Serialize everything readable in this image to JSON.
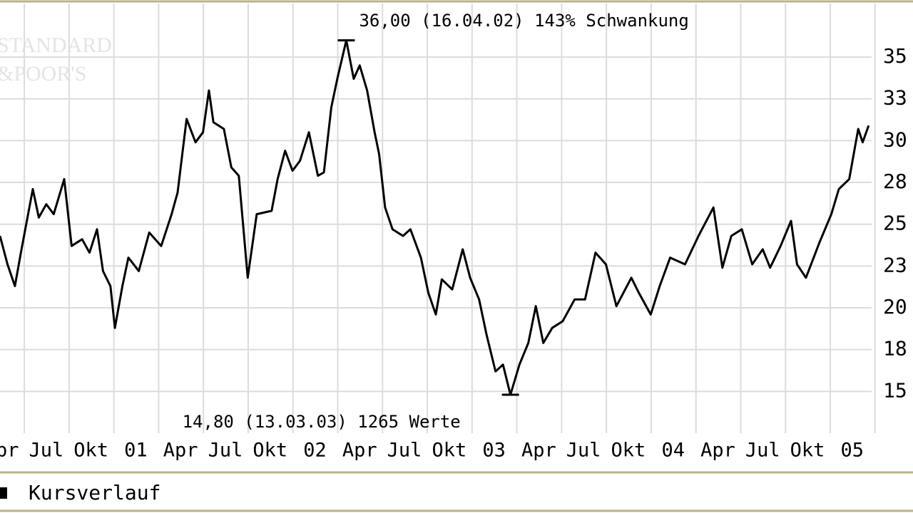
{
  "chart_data": {
    "type": "line",
    "watermark": [
      "STANDARD",
      "&POOR'S"
    ],
    "annotations": [
      "36,00 (16.04.02) 143% Schwankung",
      "14,80 (13.03.03) 1265 Werte"
    ],
    "series": [
      {
        "name": "Kursverlauf",
        "color": "#000000",
        "x": [
          -0.1,
          0.4,
          0.9,
          1.3,
          2.1,
          2.5,
          3.0,
          3.5,
          4.2,
          4.7,
          5.4,
          5.9,
          6.4,
          6.8,
          7.3,
          7.6,
          8.1,
          8.5,
          9.2,
          9.9,
          10.7,
          11.4,
          11.8,
          12.4,
          13.0,
          13.5,
          13.9,
          14.2,
          14.9,
          15.4,
          15.9,
          16.5,
          17.1,
          18.1,
          18.5,
          19.0,
          19.5,
          20.0,
          20.6,
          21.2,
          21.6,
          22.1,
          22.5,
          23.1,
          23.6,
          24.0,
          24.5,
          25.0,
          25.3,
          25.7,
          26.2,
          26.9,
          27.4,
          28.1,
          28.6,
          29.1,
          29.5,
          30.2,
          30.9,
          31.4,
          32.0,
          32.5,
          33.1,
          33.6,
          34.1,
          34.7,
          35.3,
          35.8,
          36.3,
          36.9,
          37.6,
          38.4,
          39.1,
          39.8,
          40.5,
          41.2,
          42.2,
          42.7,
          43.5,
          44.1,
          44.8,
          45.8,
          46.7,
          47.7,
          48.3,
          48.9,
          49.6,
          50.3,
          51.0,
          51.5,
          52.2,
          52.9,
          53.3,
          53.9,
          54.8,
          55.6,
          56.1,
          56.8,
          57.4,
          57.7,
          58.1
        ],
        "values": [
          24.3,
          22.6,
          21.3,
          23.3,
          27.1,
          25.4,
          26.2,
          25.6,
          27.7,
          23.7,
          24.1,
          23.3,
          24.7,
          22.2,
          21.3,
          18.8,
          21.3,
          23.0,
          22.2,
          24.5,
          23.7,
          25.6,
          26.9,
          31.3,
          29.9,
          30.5,
          33.0,
          31.1,
          30.7,
          28.4,
          27.9,
          21.8,
          25.6,
          25.8,
          27.7,
          29.4,
          28.2,
          28.8,
          30.5,
          27.9,
          28.1,
          32.0,
          33.7,
          36.0,
          33.7,
          34.5,
          33.0,
          30.5,
          29.2,
          26.0,
          24.7,
          24.3,
          24.7,
          23.0,
          20.9,
          19.6,
          21.7,
          21.1,
          23.5,
          21.8,
          20.5,
          18.4,
          16.2,
          16.6,
          14.8,
          16.6,
          17.9,
          20.1,
          17.9,
          18.8,
          19.2,
          20.5,
          20.5,
          23.3,
          22.6,
          20.1,
          21.8,
          20.9,
          19.6,
          21.3,
          23.0,
          22.6,
          24.3,
          26.0,
          22.4,
          24.3,
          24.7,
          22.6,
          23.5,
          22.4,
          23.7,
          25.2,
          22.6,
          21.8,
          23.9,
          25.6,
          27.1,
          27.7,
          30.7,
          29.9,
          30.9
        ]
      }
    ],
    "xlim": [
      -0.1,
      58.3
    ],
    "ylim": [
      12.5,
      38.2
    ],
    "xticks": [
      {
        "value": 0,
        "label": "Apr"
      },
      {
        "value": 3,
        "label": "Jul"
      },
      {
        "value": 6,
        "label": "Okt"
      },
      {
        "value": 9,
        "label": "01"
      },
      {
        "value": 12,
        "label": "Apr"
      },
      {
        "value": 15,
        "label": "Jul"
      },
      {
        "value": 18,
        "label": "Okt"
      },
      {
        "value": 21,
        "label": "02"
      },
      {
        "value": 24,
        "label": "Apr"
      },
      {
        "value": 27,
        "label": "Jul"
      },
      {
        "value": 30,
        "label": "Okt"
      },
      {
        "value": 33,
        "label": "03"
      },
      {
        "value": 36,
        "label": "Apr"
      },
      {
        "value": 39,
        "label": "Jul"
      },
      {
        "value": 42,
        "label": "Okt"
      },
      {
        "value": 45,
        "label": "04"
      },
      {
        "value": 48,
        "label": "Apr"
      },
      {
        "value": 51,
        "label": "Jul"
      },
      {
        "value": 54,
        "label": "Okt"
      },
      {
        "value": 57,
        "label": "05"
      }
    ],
    "yticks": [
      15,
      {
        "value": 17.5,
        "label": "18"
      },
      20,
      {
        "value": 22.5,
        "label": "23"
      },
      25,
      {
        "value": 27.5,
        "label": "28"
      },
      30,
      {
        "value": 32.5,
        "label": "33"
      },
      35
    ],
    "grid": true
  }
}
